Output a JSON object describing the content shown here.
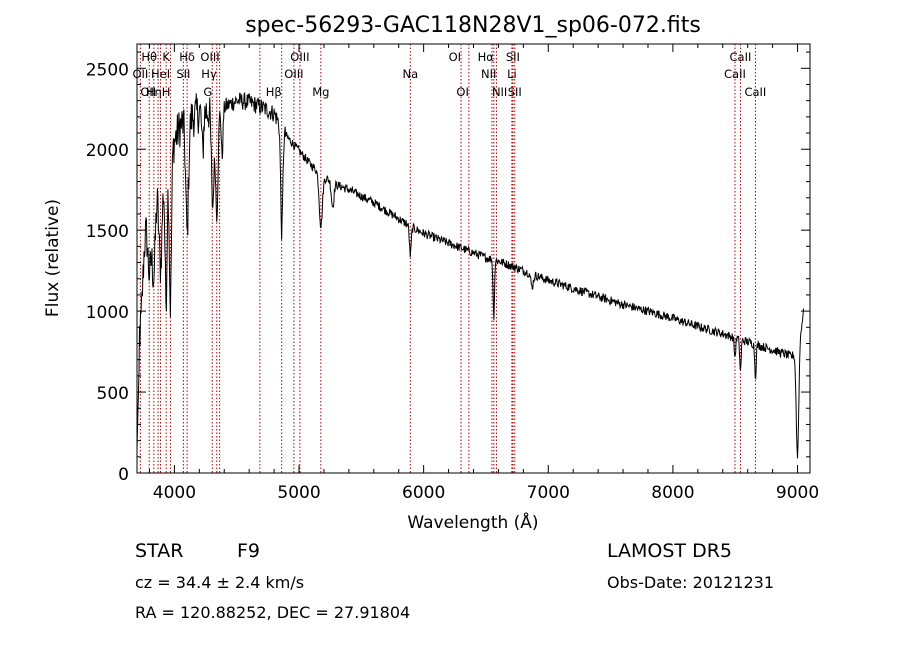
{
  "chart_data": {
    "type": "line",
    "title": "spec-56293-GAC118N28V1_sp06-072.fits",
    "xlabel": "Wavelength (Å)",
    "ylabel": "Flux (relative)",
    "xlim": [
      3700,
      9100
    ],
    "ylim": [
      0,
      2650
    ],
    "xticks": [
      4000,
      5000,
      6000,
      7000,
      8000,
      9000
    ],
    "yticks": [
      0,
      500,
      1000,
      1500,
      2000,
      2500
    ],
    "line_color": "#000000",
    "marker_color": "#b00000",
    "continuum": [
      [
        3700,
        1250
      ],
      [
        3750,
        1500
      ],
      [
        3800,
        1700
      ],
      [
        3850,
        1750
      ],
      [
        3900,
        1850
      ],
      [
        3950,
        1950
      ],
      [
        4000,
        2050
      ],
      [
        4050,
        2150
      ],
      [
        4100,
        2180
      ],
      [
        4150,
        2200
      ],
      [
        4200,
        2230
      ],
      [
        4300,
        2240
      ],
      [
        4400,
        2260
      ],
      [
        4500,
        2300
      ],
      [
        4600,
        2290
      ],
      [
        4700,
        2260
      ],
      [
        4800,
        2220
      ],
      [
        4900,
        2080
      ],
      [
        5000,
        1990
      ],
      [
        5100,
        1900
      ],
      [
        5200,
        1830
      ],
      [
        5300,
        1780
      ],
      [
        5400,
        1750
      ],
      [
        5500,
        1710
      ],
      [
        5600,
        1670
      ],
      [
        5700,
        1620
      ],
      [
        5800,
        1570
      ],
      [
        5900,
        1520
      ],
      [
        6000,
        1480
      ],
      [
        6100,
        1450
      ],
      [
        6200,
        1420
      ],
      [
        6300,
        1390
      ],
      [
        6400,
        1360
      ],
      [
        6500,
        1330
      ],
      [
        6600,
        1310
      ],
      [
        6700,
        1280
      ],
      [
        6800,
        1250
      ],
      [
        6900,
        1220
      ],
      [
        7000,
        1190
      ],
      [
        7200,
        1140
      ],
      [
        7400,
        1090
      ],
      [
        7600,
        1040
      ],
      [
        7800,
        1000
      ],
      [
        8000,
        955
      ],
      [
        8200,
        905
      ],
      [
        8400,
        860
      ],
      [
        8600,
        810
      ],
      [
        8800,
        760
      ],
      [
        8900,
        735
      ],
      [
        8950,
        720
      ],
      [
        9000,
        750
      ],
      [
        9030,
        900
      ],
      [
        9050,
        1000
      ]
    ],
    "absorption_features": [
      [
        3725,
        500,
        30
      ],
      [
        3800,
        450,
        20
      ],
      [
        3835,
        500,
        18
      ],
      [
        3889,
        550,
        18
      ],
      [
        3933,
        850,
        12
      ],
      [
        3968,
        950,
        12
      ],
      [
        4102,
        700,
        16
      ],
      [
        4227,
        250,
        10
      ],
      [
        4307,
        600,
        14
      ],
      [
        4340,
        650,
        14
      ],
      [
        4383,
        300,
        10
      ],
      [
        4861,
        650,
        12
      ],
      [
        5175,
        320,
        18
      ],
      [
        5270,
        150,
        14
      ],
      [
        5893,
        180,
        10
      ],
      [
        6563,
        350,
        8
      ],
      [
        6870,
        80,
        14
      ],
      [
        8498,
        120,
        8
      ],
      [
        8542,
        200,
        8
      ],
      [
        8662,
        200,
        8
      ],
      [
        9000,
        650,
        14
      ]
    ],
    "spectral_lines": [
      {
        "label": "Hθ",
        "x": 3798,
        "row": 0,
        "anchor": "middle"
      },
      {
        "label": "K",
        "x": 3934,
        "row": 0,
        "anchor": "middle"
      },
      {
        "label": "Hδ",
        "x": 4102,
        "row": 0,
        "anchor": "middle"
      },
      {
        "label": "OIII",
        "x": 4363,
        "row": 0,
        "anchor": "end"
      },
      {
        "label": "OIII",
        "x": 5007,
        "row": 0,
        "anchor": "middle"
      },
      {
        "label": "OI",
        "x": 6300,
        "row": 0,
        "anchor": "end"
      },
      {
        "label": "Hα",
        "x": 6563,
        "row": 0,
        "anchor": "end"
      },
      {
        "label": "SII",
        "x": 6716,
        "row": 0,
        "anchor": "middle"
      },
      {
        "label": "CaII",
        "x": 8542,
        "row": 0,
        "anchor": "middle"
      },
      {
        "label": "OII",
        "x": 3727,
        "row": 1,
        "anchor": "middle"
      },
      {
        "label": "HeI",
        "x": 3889,
        "row": 1,
        "anchor": "middle"
      },
      {
        "label": "SII",
        "x": 4072,
        "row": 1,
        "anchor": "middle"
      },
      {
        "label": "Hγ",
        "x": 4340,
        "row": 1,
        "anchor": "end"
      },
      {
        "label": "OIII",
        "x": 4959,
        "row": 1,
        "anchor": "middle"
      },
      {
        "label": "Na",
        "x": 5893,
        "row": 1,
        "anchor": "middle"
      },
      {
        "label": "NII",
        "x": 6584,
        "row": 1,
        "anchor": "end"
      },
      {
        "label": "Li",
        "x": 6708,
        "row": 1,
        "anchor": "middle"
      },
      {
        "label": "CaII",
        "x": 8498,
        "row": 1,
        "anchor": "middle"
      },
      {
        "label": "OII",
        "x": 3727,
        "row": 2,
        "anchor": "start"
      },
      {
        "label": "Hη",
        "x": 3835,
        "row": 2,
        "anchor": "middle"
      },
      {
        "label": "H",
        "x": 3968,
        "row": 2,
        "anchor": "end"
      },
      {
        "label": "G",
        "x": 4304,
        "row": 2,
        "anchor": "end"
      },
      {
        "label": "Hβ",
        "x": 4861,
        "row": 2,
        "anchor": "end"
      },
      {
        "label": "Mg",
        "x": 5175,
        "row": 2,
        "anchor": "middle"
      },
      {
        "label": "OI",
        "x": 6363,
        "row": 2,
        "anchor": "end"
      },
      {
        "label": "NII",
        "x": 6548,
        "row": 2,
        "anchor": "start"
      },
      {
        "label": "SII",
        "x": 6731,
        "row": 2,
        "anchor": "middle"
      },
      {
        "label": "CaII",
        "x": 8662,
        "row": 2,
        "anchor": "middle"
      }
    ],
    "extra_marker_lines": [
      3869,
      4686,
      6717,
      6731
    ]
  },
  "info": {
    "class_label": "STAR",
    "subclass_label": "F9",
    "cz_text": "cz = 34.4 ± 2.4 km/s",
    "radec_text": "RA = 120.88252, DEC =  27.91804",
    "survey_text": "LAMOST DR5",
    "obs_date_text": "Obs-Date: 20121231"
  }
}
